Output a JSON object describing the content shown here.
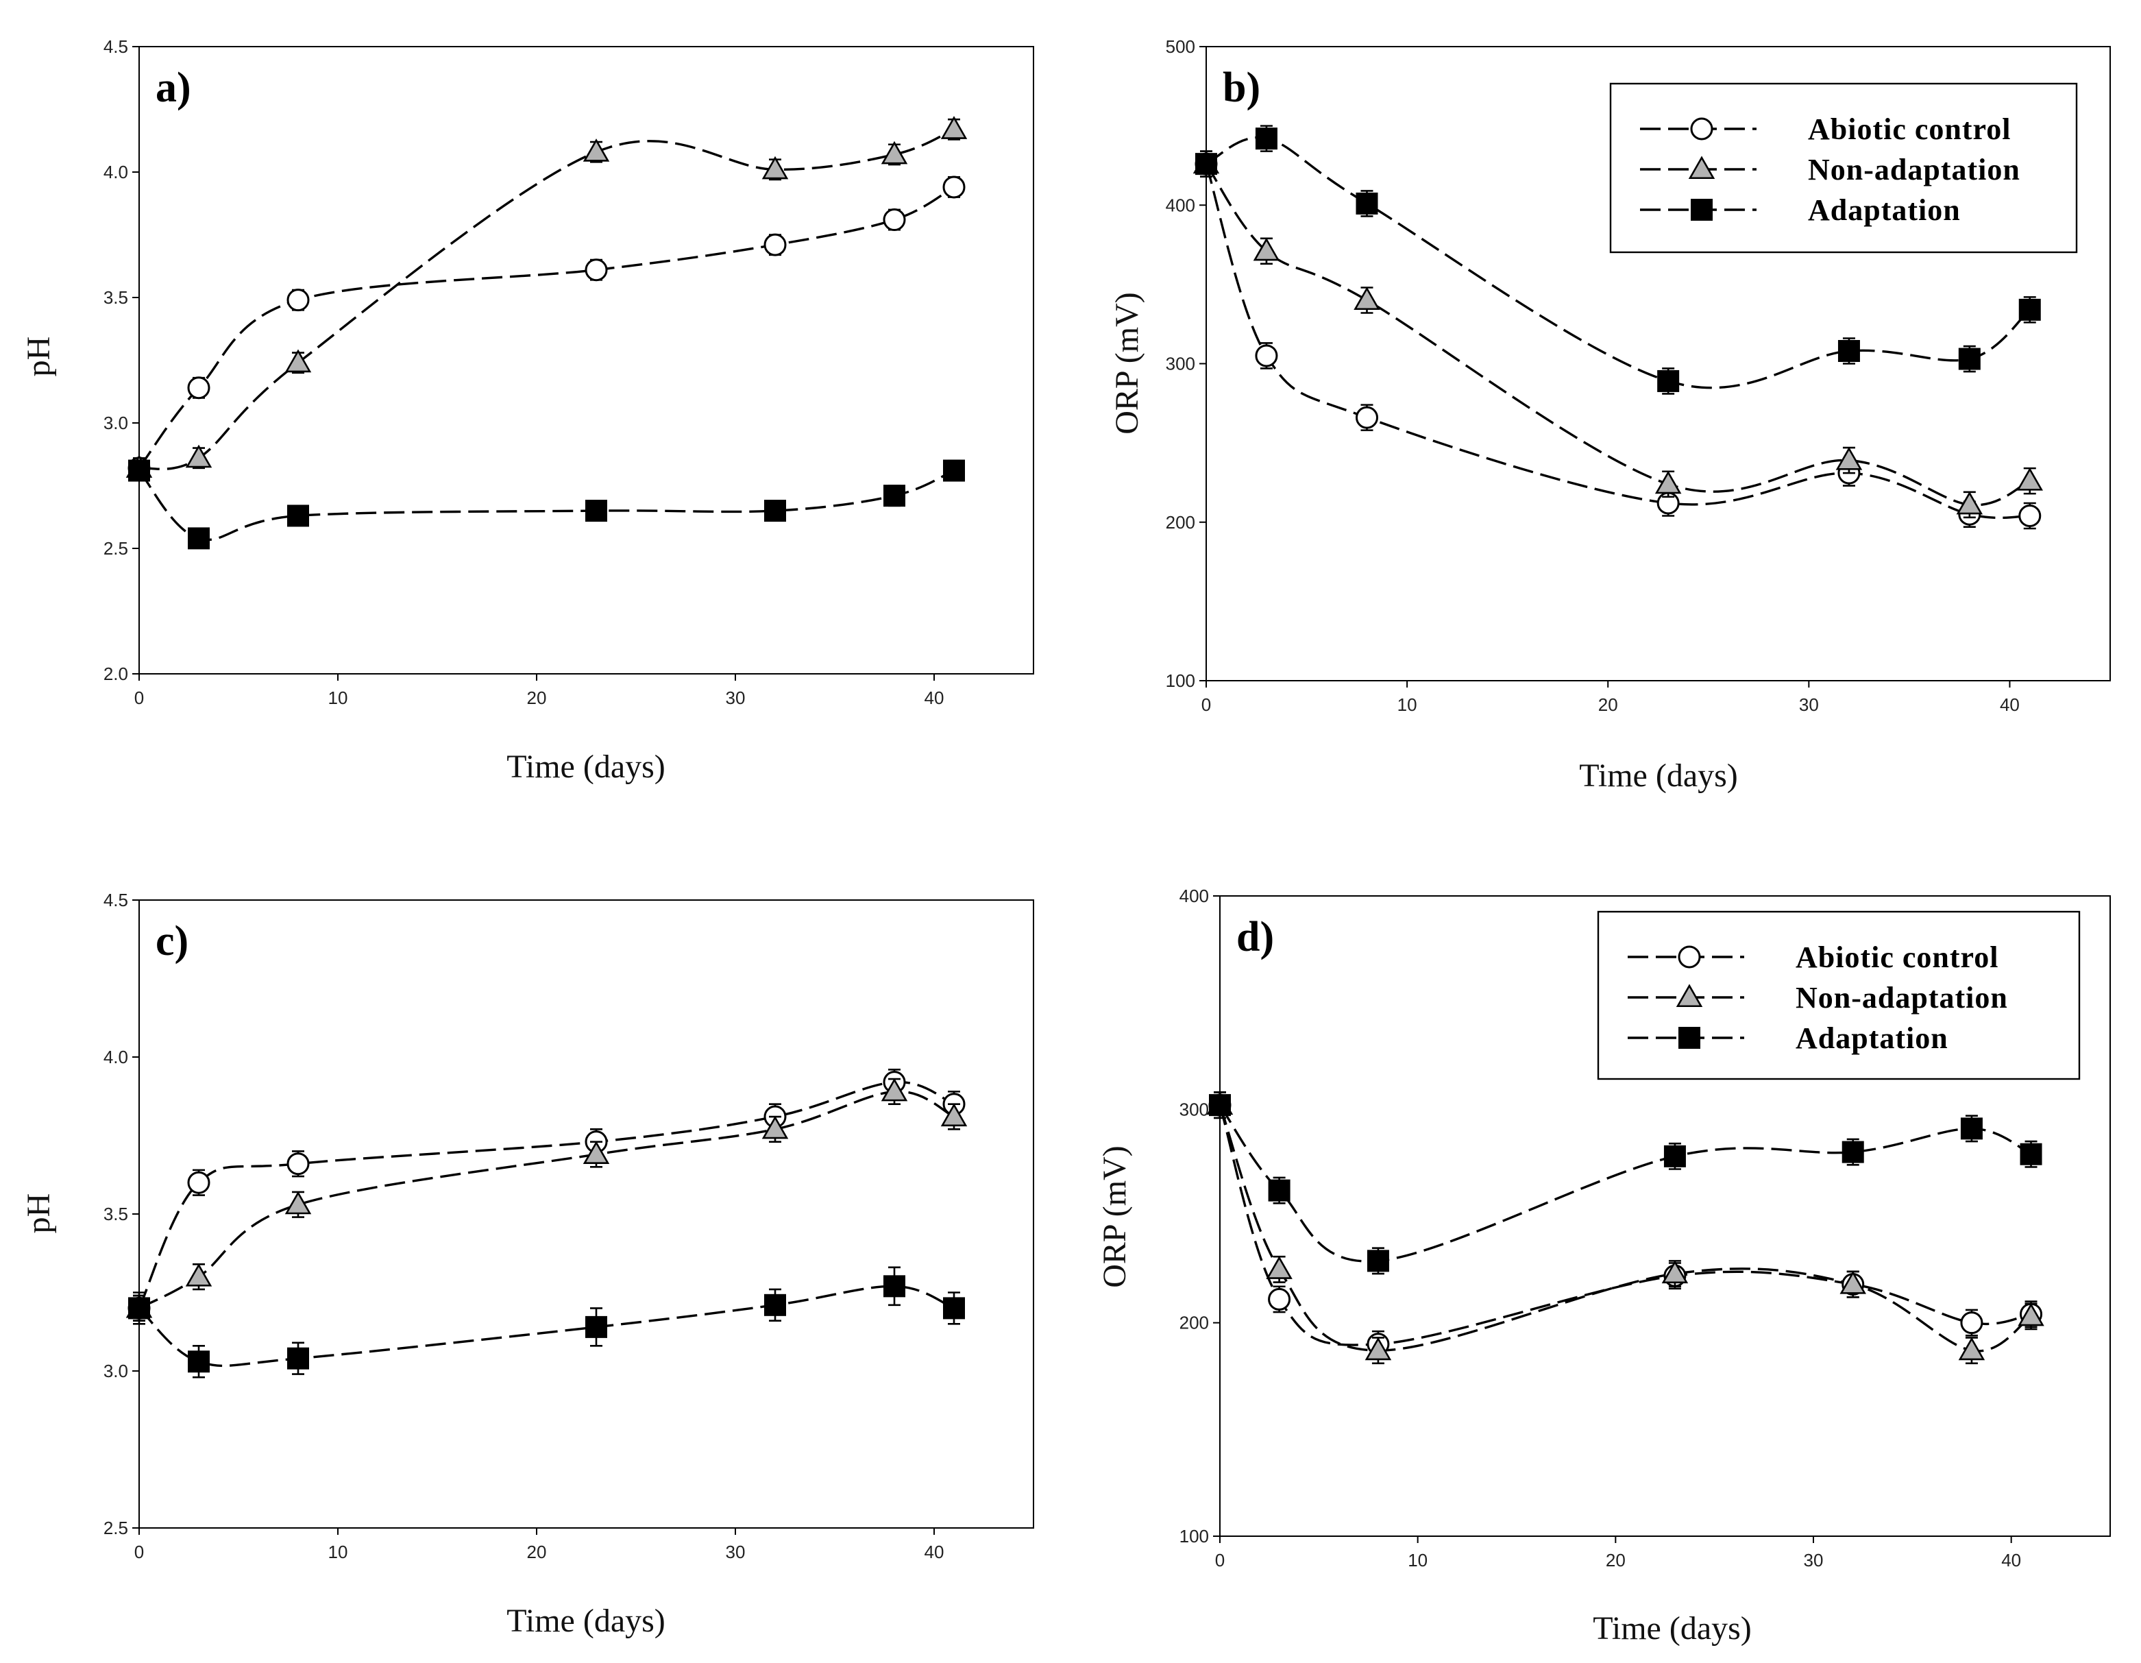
{
  "colors": {
    "background": "#ffffff",
    "axis": "#000000",
    "line": "#000000",
    "circle_fill": "#ffffff",
    "triangle_fill": "#b3b3b3",
    "square_fill": "#000000"
  },
  "chart_data": [
    {
      "type": "line",
      "panel_label": "a)",
      "xlabel": "Time (days)",
      "ylabel": "pH",
      "xlim": [
        0,
        45
      ],
      "ylim": [
        2.0,
        4.5
      ],
      "xticks": [
        0,
        10,
        20,
        30,
        40
      ],
      "xtick_labels": [
        "0",
        "10",
        "20",
        "30",
        "40"
      ],
      "yticks": [
        2.0,
        2.5,
        3.0,
        3.5,
        4.0,
        4.5
      ],
      "ytick_labels": [
        "2.0",
        "2.5",
        "3.0",
        "3.5",
        "4.0",
        "4.5"
      ],
      "legend": null,
      "x": [
        0,
        3,
        8,
        23,
        32,
        38,
        41
      ],
      "series": [
        {
          "name": "Abiotic control",
          "marker": "circle",
          "values": [
            2.82,
            3.14,
            3.49,
            3.61,
            3.71,
            3.81,
            3.94
          ],
          "errors": [
            0.04,
            0.04,
            0.04,
            0.04,
            0.04,
            0.04,
            0.04
          ]
        },
        {
          "name": "Non-adaptation",
          "marker": "triangle",
          "values": [
            2.82,
            2.86,
            3.24,
            4.08,
            4.01,
            4.07,
            4.17
          ],
          "errors": [
            0.04,
            0.04,
            0.04,
            0.04,
            0.04,
            0.04,
            0.04
          ]
        },
        {
          "name": "Adaptation",
          "marker": "square",
          "values": [
            2.81,
            2.54,
            2.63,
            2.65,
            2.65,
            2.71,
            2.81
          ],
          "errors": [
            0.03,
            0.03,
            0.03,
            0.03,
            0.03,
            0.04,
            0.04
          ]
        }
      ]
    },
    {
      "type": "line",
      "panel_label": "b)",
      "xlabel": "Time (days)",
      "ylabel": "ORP (mV)",
      "xlim": [
        0,
        45
      ],
      "ylim": [
        100,
        500
      ],
      "xticks": [
        0,
        10,
        20,
        30,
        40
      ],
      "xtick_labels": [
        "0",
        "10",
        "20",
        "30",
        "40"
      ],
      "yticks": [
        100,
        200,
        300,
        400,
        500
      ],
      "ytick_labels": [
        "100",
        "200",
        "300",
        "400",
        "500"
      ],
      "legend": {
        "position": "top-right",
        "entries": [
          "Abiotic control",
          "Non-adaptation",
          "Adaptation"
        ]
      },
      "x": [
        0,
        3,
        8,
        23,
        32,
        38,
        41
      ],
      "series": [
        {
          "name": "Abiotic control",
          "marker": "circle",
          "values": [
            426,
            305,
            266,
            212,
            231,
            205,
            204
          ],
          "errors": [
            8,
            8,
            8,
            8,
            8,
            8,
            8
          ]
        },
        {
          "name": "Non-adaptation",
          "marker": "triangle",
          "values": [
            426,
            371,
            340,
            224,
            239,
            211,
            226
          ],
          "errors": [
            8,
            8,
            8,
            8,
            8,
            8,
            8
          ]
        },
        {
          "name": "Adaptation",
          "marker": "square",
          "values": [
            426,
            442,
            401,
            289,
            308,
            303,
            334
          ],
          "errors": [
            8,
            8,
            8,
            8,
            8,
            8,
            8
          ]
        }
      ]
    },
    {
      "type": "line",
      "panel_label": "c)",
      "xlabel": "Time (days)",
      "ylabel": "pH",
      "xlim": [
        0,
        45
      ],
      "ylim": [
        2.5,
        4.5
      ],
      "xticks": [
        0,
        10,
        20,
        30,
        40
      ],
      "xtick_labels": [
        "0",
        "10",
        "20",
        "30",
        "40"
      ],
      "yticks": [
        2.5,
        3.0,
        3.5,
        4.0,
        4.5
      ],
      "ytick_labels": [
        "2.5",
        "3.0",
        "3.5",
        "4.0",
        "4.5"
      ],
      "legend": null,
      "x": [
        0,
        3,
        8,
        23,
        32,
        38,
        41
      ],
      "series": [
        {
          "name": "Abiotic control",
          "marker": "circle",
          "values": [
            3.2,
            3.6,
            3.66,
            3.73,
            3.81,
            3.92,
            3.85
          ],
          "errors": [
            0.04,
            0.04,
            0.04,
            0.04,
            0.04,
            0.04,
            0.04
          ]
        },
        {
          "name": "Non-adaptation",
          "marker": "triangle",
          "values": [
            3.2,
            3.3,
            3.53,
            3.69,
            3.77,
            3.89,
            3.81
          ],
          "errors": [
            0.04,
            0.04,
            0.04,
            0.04,
            0.04,
            0.04,
            0.04
          ]
        },
        {
          "name": "Adaptation",
          "marker": "square",
          "values": [
            3.2,
            3.03,
            3.04,
            3.14,
            3.21,
            3.27,
            3.2
          ],
          "errors": [
            0.05,
            0.05,
            0.05,
            0.06,
            0.05,
            0.06,
            0.05
          ]
        }
      ]
    },
    {
      "type": "line",
      "panel_label": "d)",
      "xlabel": "Time (days)",
      "ylabel": "ORP (mV)",
      "xlim": [
        0,
        45
      ],
      "ylim": [
        100,
        400
      ],
      "xticks": [
        0,
        10,
        20,
        30,
        40
      ],
      "xtick_labels": [
        "0",
        "10",
        "20",
        "30",
        "40"
      ],
      "yticks": [
        100,
        200,
        300,
        400
      ],
      "ytick_labels": [
        "100",
        "200",
        "300",
        "400"
      ],
      "legend": {
        "position": "top-right",
        "entries": [
          "Abiotic control",
          "Non-adaptation",
          "Adaptation"
        ]
      },
      "x": [
        0,
        3,
        8,
        23,
        32,
        38,
        41
      ],
      "series": [
        {
          "name": "Abiotic control",
          "marker": "circle",
          "values": [
            302,
            211,
            190,
            222,
            218,
            200,
            204
          ],
          "errors": [
            6,
            6,
            6,
            6,
            6,
            6,
            6
          ]
        },
        {
          "name": "Non-adaptation",
          "marker": "triangle",
          "values": [
            302,
            225,
            187,
            223,
            218,
            187,
            203
          ],
          "errors": [
            6,
            6,
            6,
            6,
            6,
            6,
            6
          ]
        },
        {
          "name": "Adaptation",
          "marker": "square",
          "values": [
            302,
            262,
            229,
            278,
            280,
            291,
            279
          ],
          "errors": [
            6,
            6,
            6,
            6,
            6,
            6,
            6
          ]
        }
      ]
    }
  ]
}
